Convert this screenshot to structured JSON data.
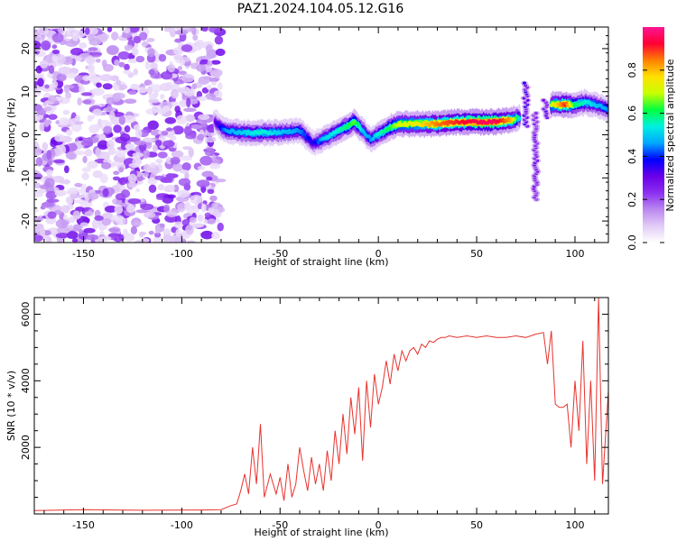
{
  "figure": {
    "title": "PAZ1.2024.104.05.12.G16"
  },
  "chart_data": [
    {
      "type": "heatmap",
      "xlabel": "Height of straight line (km)",
      "ylabel": "Frequency (Hz)",
      "xlim": [
        -175,
        117
      ],
      "ylim": [
        -25,
        25
      ],
      "x_ticks": [
        "-150",
        "-100",
        "-50",
        "0",
        "50",
        "100"
      ],
      "x_tick_values": [
        -150,
        -100,
        -50,
        0,
        50,
        100
      ],
      "y_ticks": [
        "-20",
        "-10",
        "0",
        "10",
        "20"
      ],
      "y_tick_values": [
        -20,
        -10,
        0,
        10,
        20
      ],
      "noise_region": {
        "x_range": [
          -175,
          -80
        ],
        "y_range": [
          -25,
          25
        ],
        "amplitude_range": [
          0.05,
          0.3
        ]
      },
      "ridge": {
        "x": [
          -83,
          -78,
          -70,
          -60,
          -50,
          -40,
          -33,
          -28,
          -20,
          -12,
          -8,
          -4,
          0,
          5,
          10,
          20,
          30,
          40,
          50,
          60,
          68,
          72
        ],
        "frequency": [
          3,
          1,
          0.5,
          0.5,
          0.5,
          1,
          -2,
          -1,
          1,
          3,
          1,
          -1,
          0,
          1.5,
          2.5,
          2.5,
          2.5,
          3,
          3,
          3,
          3.5,
          4
        ],
        "amplitude": [
          0.3,
          0.45,
          0.5,
          0.55,
          0.5,
          0.45,
          0.35,
          0.5,
          0.55,
          0.65,
          0.5,
          0.45,
          0.55,
          0.6,
          0.7,
          0.75,
          0.85,
          0.9,
          0.95,
          0.95,
          0.8,
          0.5
        ]
      },
      "vertical_streaks": [
        {
          "x": 75,
          "y_range": [
            2,
            12
          ],
          "amplitude": 0.3
        },
        {
          "x": 80,
          "y_range": [
            -15,
            5
          ],
          "amplitude": 0.25
        },
        {
          "x": 85,
          "y_range": [
            4,
            8
          ],
          "amplitude": 0.3
        }
      ],
      "high_segment": {
        "x": [
          88,
          95,
          100,
          105,
          110,
          117
        ],
        "frequency": [
          7,
          7,
          7,
          7.5,
          7,
          6
        ],
        "amplitude": [
          0.7,
          0.9,
          0.6,
          0.55,
          0.5,
          0.45
        ]
      },
      "colorbar": {
        "label": "Normalized spectral amplitude",
        "range": [
          0,
          1
        ],
        "ticks": [
          "0.0",
          "0.2",
          "0.4",
          "0.6",
          "0.8"
        ],
        "tick_values": [
          0,
          0.2,
          0.4,
          0.6,
          0.8
        ],
        "colormap": [
          "#ffffff",
          "#e2ccf7",
          "#bb88f0",
          "#8b2ff0",
          "#6a00e8",
          "#0000ff",
          "#00a8ff",
          "#00f0e0",
          "#00ff40",
          "#c8ff00",
          "#ffe000",
          "#ff8000",
          "#ff0033",
          "#ff1494"
        ]
      }
    },
    {
      "type": "line",
      "xlabel": "Height of straight line (km)",
      "ylabel": "SNR (10 * v/v)",
      "xlim": [
        -175,
        117
      ],
      "ylim": [
        0,
        6500
      ],
      "x_ticks": [
        "-150",
        "-100",
        "-50",
        "0",
        "50",
        "100"
      ],
      "x_tick_values": [
        -150,
        -100,
        -50,
        0,
        50,
        100
      ],
      "y_ticks": [
        "2000",
        "4000",
        "6000"
      ],
      "y_tick_values": [
        2000,
        4000,
        6000
      ],
      "line_color": "#e8332e",
      "x": [
        -175,
        -150,
        -120,
        -90,
        -80,
        -75,
        -72,
        -70,
        -68,
        -66,
        -64,
        -62,
        -60,
        -58,
        -55,
        -52,
        -50,
        -48,
        -46,
        -44,
        -42,
        -40,
        -38,
        -36,
        -34,
        -32,
        -30,
        -28,
        -26,
        -24,
        -22,
        -20,
        -18,
        -16,
        -14,
        -12,
        -10,
        -8,
        -6,
        -4,
        -2,
        0,
        2,
        4,
        6,
        8,
        10,
        12,
        14,
        16,
        18,
        20,
        22,
        24,
        26,
        28,
        30,
        32,
        34,
        36,
        40,
        45,
        50,
        55,
        60,
        65,
        70,
        75,
        80,
        84,
        86,
        88,
        90,
        92,
        94,
        96,
        98,
        100,
        102,
        104,
        106,
        108,
        110,
        112,
        114,
        117
      ],
      "values": [
        100,
        130,
        110,
        120,
        130,
        250,
        300,
        700,
        1200,
        600,
        2000,
        900,
        2700,
        500,
        1200,
        600,
        1100,
        400,
        1500,
        500,
        900,
        2000,
        1300,
        700,
        1700,
        900,
        1500,
        700,
        1900,
        1000,
        2500,
        1500,
        3000,
        1800,
        3500,
        2400,
        3800,
        1600,
        4000,
        2600,
        4200,
        3300,
        3800,
        4600,
        3900,
        4800,
        4300,
        4900,
        4600,
        4900,
        5000,
        4800,
        5100,
        5000,
        5200,
        5150,
        5250,
        5300,
        5300,
        5350,
        5300,
        5350,
        5300,
        5350,
        5300,
        5300,
        5350,
        5300,
        5400,
        5450,
        4500,
        5500,
        3300,
        3200,
        3200,
        3300,
        2000,
        4000,
        2500,
        5200,
        1500,
        4000,
        1000,
        6500,
        900,
        3700
      ]
    }
  ]
}
